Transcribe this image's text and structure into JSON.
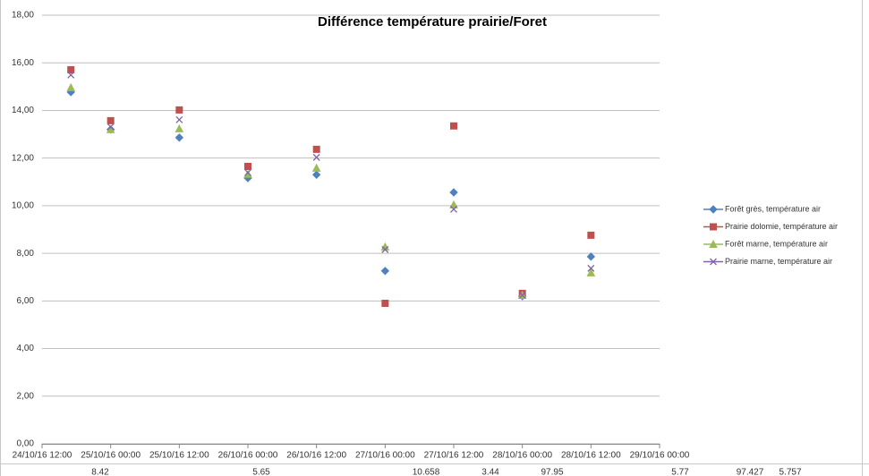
{
  "chart_data": {
    "type": "scatter",
    "title": "Différence température prairie/Foret",
    "x": [
      42667.71,
      42668,
      42668.5,
      42669,
      42669.5,
      42670,
      42670.5,
      42671,
      42671.5
    ],
    "xlim": [
      42667.5,
      42672
    ],
    "xticks": [
      {
        "value": 42667.5,
        "label": "24/10/16 12:00"
      },
      {
        "value": 42668,
        "label": "25/10/16 00:00"
      },
      {
        "value": 42668.5,
        "label": "25/10/16 12:00"
      },
      {
        "value": 42669,
        "label": "26/10/16 00:00"
      },
      {
        "value": 42669.5,
        "label": "26/10/16 12:00"
      },
      {
        "value": 42670,
        "label": "27/10/16 00:00"
      },
      {
        "value": 42670.5,
        "label": "27/10/16 12:00"
      },
      {
        "value": 42671,
        "label": "28/10/16 00:00"
      },
      {
        "value": 42671.5,
        "label": "28/10/16 12:00"
      },
      {
        "value": 42672,
        "label": "29/10/16 00:00"
      }
    ],
    "ylim": [
      0,
      18
    ],
    "yticks": [
      {
        "value": 0,
        "label": "0,00"
      },
      {
        "value": 2,
        "label": "2,00"
      },
      {
        "value": 4,
        "label": "4,00"
      },
      {
        "value": 6,
        "label": "6,00"
      },
      {
        "value": 8,
        "label": "8,00"
      },
      {
        "value": 10,
        "label": "10,00"
      },
      {
        "value": 12,
        "label": "12,00"
      },
      {
        "value": 14,
        "label": "14,00"
      },
      {
        "value": 16,
        "label": "16,00"
      },
      {
        "value": 18,
        "label": "18,00"
      }
    ],
    "grid": true,
    "legend": "right",
    "series": [
      {
        "name": "Forêt grès, température air",
        "color": "#4f81bd",
        "marker": "diamond",
        "values": [
          14.77,
          13.2,
          12.86,
          11.16,
          11.3,
          7.26,
          10.56,
          6.2,
          7.86
        ]
      },
      {
        "name": "Prairie dolomie, température air",
        "color": "#c0504d",
        "marker": "square",
        "values": [
          15.71,
          13.57,
          14.02,
          11.65,
          12.37,
          5.9,
          13.35,
          6.32,
          8.76
        ]
      },
      {
        "name": "Forêt marne, température air",
        "color": "#9bbb59",
        "marker": "triangle",
        "values": [
          14.96,
          13.2,
          13.23,
          11.32,
          11.58,
          8.27,
          10.04,
          6.24,
          7.18
        ]
      },
      {
        "name": "Prairie marne, température air",
        "color": "#8064a2",
        "marker": "x",
        "values": [
          15.49,
          13.31,
          13.61,
          11.39,
          12.03,
          8.16,
          9.85,
          6.24,
          7.37
        ]
      }
    ]
  },
  "spreadsheet_cells": [
    "8.42",
    "5.65",
    "10.658",
    "3.44",
    "97.95",
    "5.77",
    "97.427",
    "5.757"
  ]
}
